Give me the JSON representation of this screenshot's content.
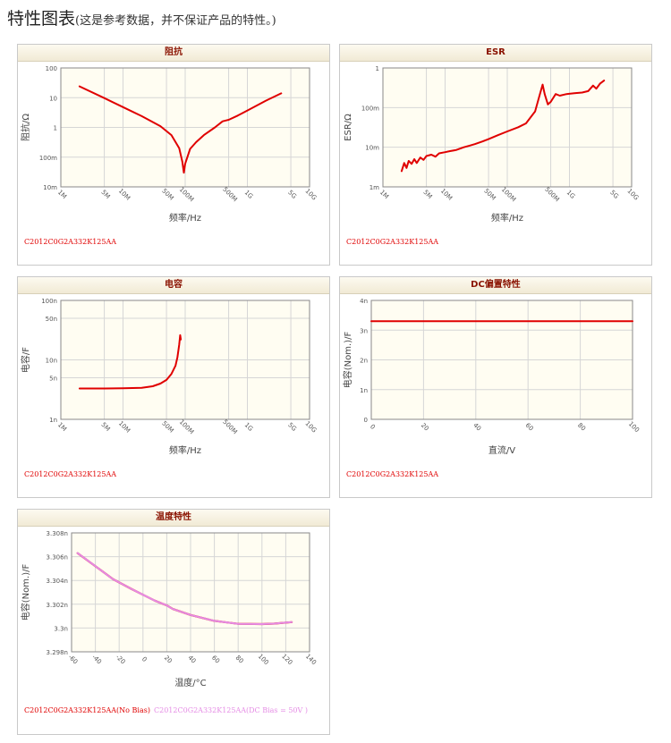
{
  "header": {
    "title": "特性图表",
    "note": "(这是参考数据，并不保证产品的特性。)"
  },
  "chart_data": [
    {
      "id": "impedance",
      "type": "line",
      "title": "阻抗",
      "xlabel": "频率/Hz",
      "ylabel": "阻抗/Ω",
      "xscale": "log",
      "yscale": "log",
      "xlim": [
        1000000,
        10000000000
      ],
      "ylim": [
        0.01,
        100
      ],
      "xticks": [
        {
          "v": 1000000,
          "label": "1M"
        },
        {
          "v": 5000000,
          "label": "5M"
        },
        {
          "v": 10000000,
          "label": "10M"
        },
        {
          "v": 50000000,
          "label": "50M"
        },
        {
          "v": 100000000,
          "label": "100M"
        },
        {
          "v": 500000000,
          "label": "500M"
        },
        {
          "v": 1000000000,
          "label": "1G"
        },
        {
          "v": 5000000000,
          "label": "5G"
        },
        {
          "v": 10000000000,
          "label": "10G"
        }
      ],
      "yticks": [
        {
          "v": 0.01,
          "label": "10m"
        },
        {
          "v": 0.1,
          "label": "100m"
        },
        {
          "v": 1,
          "label": "1"
        },
        {
          "v": 10,
          "label": "10"
        },
        {
          "v": 100,
          "label": "100"
        }
      ],
      "series": [
        {
          "color": "#e00000",
          "points": [
            [
              2000000,
              24
            ],
            [
              5000000,
              9.7
            ],
            [
              10000000,
              4.8
            ],
            [
              20000000,
              2.4
            ],
            [
              40000000,
              1.1
            ],
            [
              60000000,
              0.55
            ],
            [
              80000000,
              0.2
            ],
            [
              90000000,
              0.07
            ],
            [
              95000000,
              0.03
            ],
            [
              100000000,
              0.06
            ],
            [
              120000000,
              0.19
            ],
            [
              150000000,
              0.32
            ],
            [
              200000000,
              0.55
            ],
            [
              300000000,
              1.0
            ],
            [
              400000000,
              1.6
            ],
            [
              500000000,
              1.8
            ],
            [
              700000000,
              2.5
            ],
            [
              1000000000,
              3.7
            ],
            [
              2000000000,
              8
            ],
            [
              3500000000,
              14
            ]
          ]
        }
      ],
      "legend": [
        {
          "text": "C2012C0G2A332K125AA",
          "color": "#e00000"
        }
      ]
    },
    {
      "id": "esr",
      "type": "line",
      "title": "ESR",
      "xlabel": "频率/Hz",
      "ylabel": "ESR/Ω",
      "xscale": "log",
      "yscale": "log",
      "xlim": [
        1000000,
        10000000000
      ],
      "ylim": [
        0.001,
        1
      ],
      "xticks": [
        {
          "v": 1000000,
          "label": "1M"
        },
        {
          "v": 5000000,
          "label": "5M"
        },
        {
          "v": 10000000,
          "label": "10M"
        },
        {
          "v": 50000000,
          "label": "50M"
        },
        {
          "v": 100000000,
          "label": "100M"
        },
        {
          "v": 500000000,
          "label": "500M"
        },
        {
          "v": 1000000000,
          "label": "1G"
        },
        {
          "v": 5000000000,
          "label": "5G"
        },
        {
          "v": 10000000000,
          "label": "10G"
        }
      ],
      "yticks": [
        {
          "v": 0.001,
          "label": "1m"
        },
        {
          "v": 0.01,
          "label": "10m"
        },
        {
          "v": 0.1,
          "label": "100m"
        },
        {
          "v": 1,
          "label": "1"
        }
      ],
      "series": [
        {
          "color": "#e00000",
          "points": [
            [
              2000000,
              0.0025
            ],
            [
              2200000,
              0.004
            ],
            [
              2400000,
              0.003
            ],
            [
              2600000,
              0.0045
            ],
            [
              2900000,
              0.0038
            ],
            [
              3200000,
              0.005
            ],
            [
              3500000,
              0.004
            ],
            [
              4000000,
              0.0055
            ],
            [
              4500000,
              0.0048
            ],
            [
              5000000,
              0.006
            ],
            [
              6000000,
              0.0065
            ],
            [
              7000000,
              0.0058
            ],
            [
              8000000,
              0.007
            ],
            [
              10000000,
              0.0075
            ],
            [
              12000000,
              0.008
            ],
            [
              15000000,
              0.0085
            ],
            [
              20000000,
              0.01
            ],
            [
              25000000,
              0.011
            ],
            [
              30000000,
              0.012
            ],
            [
              40000000,
              0.014
            ],
            [
              50000000,
              0.016
            ],
            [
              70000000,
              0.02
            ],
            [
              100000000,
              0.025
            ],
            [
              150000000,
              0.032
            ],
            [
              200000000,
              0.04
            ],
            [
              280000000,
              0.08
            ],
            [
              330000000,
              0.2
            ],
            [
              370000000,
              0.38
            ],
            [
              400000000,
              0.22
            ],
            [
              450000000,
              0.12
            ],
            [
              500000000,
              0.14
            ],
            [
              600000000,
              0.22
            ],
            [
              700000000,
              0.2
            ],
            [
              900000000,
              0.22
            ],
            [
              1200000000,
              0.23
            ],
            [
              1600000000,
              0.24
            ],
            [
              2000000000,
              0.26
            ],
            [
              2400000000,
              0.36
            ],
            [
              2700000000,
              0.3
            ],
            [
              3100000000,
              0.4
            ],
            [
              3600000000,
              0.48
            ]
          ]
        }
      ],
      "legend": [
        {
          "text": "C2012C0G2A332K125AA",
          "color": "#e00000"
        }
      ]
    },
    {
      "id": "capacitance",
      "type": "line",
      "title": "电容",
      "xlabel": "频率/Hz",
      "ylabel": "电容/F",
      "xscale": "log",
      "yscale": "log",
      "xlim": [
        1000000,
        10000000000
      ],
      "ylim": [
        1e-09,
        1e-07
      ],
      "xticks": [
        {
          "v": 1000000,
          "label": "1M"
        },
        {
          "v": 5000000,
          "label": "5M"
        },
        {
          "v": 10000000,
          "label": "10M"
        },
        {
          "v": 50000000,
          "label": "50M"
        },
        {
          "v": 100000000,
          "label": "100M"
        },
        {
          "v": 500000000,
          "label": "500M"
        },
        {
          "v": 1000000000,
          "label": "1G"
        },
        {
          "v": 5000000000,
          "label": "5G"
        },
        {
          "v": 10000000000,
          "label": "10G"
        }
      ],
      "yticks": [
        {
          "v": 1e-09,
          "label": "1n"
        },
        {
          "v": 5e-09,
          "label": "5n"
        },
        {
          "v": 1e-08,
          "label": "10n"
        },
        {
          "v": 5e-08,
          "label": "50n"
        },
        {
          "v": 1e-07,
          "label": "100n"
        }
      ],
      "series": [
        {
          "color": "#e00000",
          "points": [
            [
              2000000,
              3.3e-09
            ],
            [
              5000000,
              3.3e-09
            ],
            [
              10000000,
              3.32e-09
            ],
            [
              20000000,
              3.4e-09
            ],
            [
              30000000,
              3.6e-09
            ],
            [
              40000000,
              4e-09
            ],
            [
              50000000,
              4.6e-09
            ],
            [
              60000000,
              5.8e-09
            ],
            [
              70000000,
              8e-09
            ],
            [
              75000000,
              1.1e-08
            ],
            [
              80000000,
              1.8e-08
            ],
            [
              83000000,
              2.6e-08
            ],
            [
              85000000,
              2.2e-08
            ]
          ]
        }
      ],
      "legend": [
        {
          "text": "C2012C0G2A332K125AA",
          "color": "#e00000"
        }
      ]
    },
    {
      "id": "dcbias",
      "type": "line",
      "title": "DC偏置特性",
      "xlabel": "直流/V",
      "ylabel": "电容(Nom.)/F",
      "xscale": "linear",
      "yscale": "linear",
      "xlim": [
        0,
        100
      ],
      "ylim": [
        0,
        4e-09
      ],
      "xticks": [
        {
          "v": 0,
          "label": "0"
        },
        {
          "v": 20,
          "label": "20"
        },
        {
          "v": 40,
          "label": "40"
        },
        {
          "v": 60,
          "label": "60"
        },
        {
          "v": 80,
          "label": "80"
        },
        {
          "v": 100,
          "label": "100"
        }
      ],
      "yticks": [
        {
          "v": 0,
          "label": "0"
        },
        {
          "v": 1e-09,
          "label": "1n"
        },
        {
          "v": 2e-09,
          "label": "2n"
        },
        {
          "v": 3e-09,
          "label": "3n"
        },
        {
          "v": 4e-09,
          "label": "4n"
        }
      ],
      "series": [
        {
          "color": "#e00000",
          "points": [
            [
              0,
              3.3e-09
            ],
            [
              100,
              3.3e-09
            ]
          ]
        }
      ],
      "legend": [
        {
          "text": "C2012C0G2A332K125AA",
          "color": "#e00000"
        }
      ]
    },
    {
      "id": "temperature",
      "type": "line",
      "title": "温度特性",
      "xlabel": "温度/°C",
      "ylabel": "电容(Nom.)/F",
      "xscale": "linear",
      "yscale": "linear",
      "xlim": [
        -60,
        140
      ],
      "ylim": [
        3.298e-09,
        3.308e-09
      ],
      "xticks": [
        {
          "v": -60,
          "label": "-60"
        },
        {
          "v": -40,
          "label": "-40"
        },
        {
          "v": -20,
          "label": "-20"
        },
        {
          "v": 0,
          "label": "0"
        },
        {
          "v": 20,
          "label": "20"
        },
        {
          "v": 40,
          "label": "40"
        },
        {
          "v": 60,
          "label": "60"
        },
        {
          "v": 80,
          "label": "80"
        },
        {
          "v": 100,
          "label": "100"
        },
        {
          "v": 120,
          "label": "120"
        },
        {
          "v": 140,
          "label": "140"
        }
      ],
      "yticks": [
        {
          "v": 3.298e-09,
          "label": "3.298n"
        },
        {
          "v": 3.3e-09,
          "label": "3.3n"
        },
        {
          "v": 3.302e-09,
          "label": "3.302n"
        },
        {
          "v": 3.304e-09,
          "label": "3.304n"
        },
        {
          "v": 3.306e-09,
          "label": "3.306n"
        },
        {
          "v": 3.308e-09,
          "label": "3.308n"
        }
      ],
      "series": [
        {
          "color": "#e00000",
          "points": [
            [
              -55,
              3.3063e-09
            ],
            [
              -40,
              3.3052e-09
            ],
            [
              -25,
              3.3041e-09
            ],
            [
              -10,
              3.3033e-09
            ],
            [
              0,
              3.3028e-09
            ],
            [
              10,
              3.3023e-09
            ],
            [
              20,
              3.3019e-09
            ],
            [
              25,
              3.3016e-09
            ],
            [
              40,
              3.3011e-09
            ],
            [
              60,
              3.3006e-09
            ],
            [
              80,
              3.30035e-09
            ],
            [
              100,
              3.30033e-09
            ],
            [
              110,
              3.30037e-09
            ],
            [
              125,
              3.3005e-09
            ]
          ]
        },
        {
          "color": "#e58ce5",
          "points": [
            [
              -55,
              3.3063e-09
            ],
            [
              -40,
              3.3052e-09
            ],
            [
              -25,
              3.3041e-09
            ],
            [
              -10,
              3.3033e-09
            ],
            [
              0,
              3.3028e-09
            ],
            [
              10,
              3.3023e-09
            ],
            [
              20,
              3.3019e-09
            ],
            [
              25,
              3.3016e-09
            ],
            [
              40,
              3.3011e-09
            ],
            [
              60,
              3.3006e-09
            ],
            [
              80,
              3.30035e-09
            ],
            [
              100,
              3.30033e-09
            ],
            [
              110,
              3.30037e-09
            ],
            [
              125,
              3.3005e-09
            ]
          ]
        }
      ],
      "legend": [
        {
          "text": "C2012C0G2A332K125AA(No Bias)",
          "color": "#e00000"
        },
        {
          "text": "C2012C0G2A332K125AA(DC Bias = 50V )",
          "color": "#e58ce5"
        }
      ]
    }
  ]
}
